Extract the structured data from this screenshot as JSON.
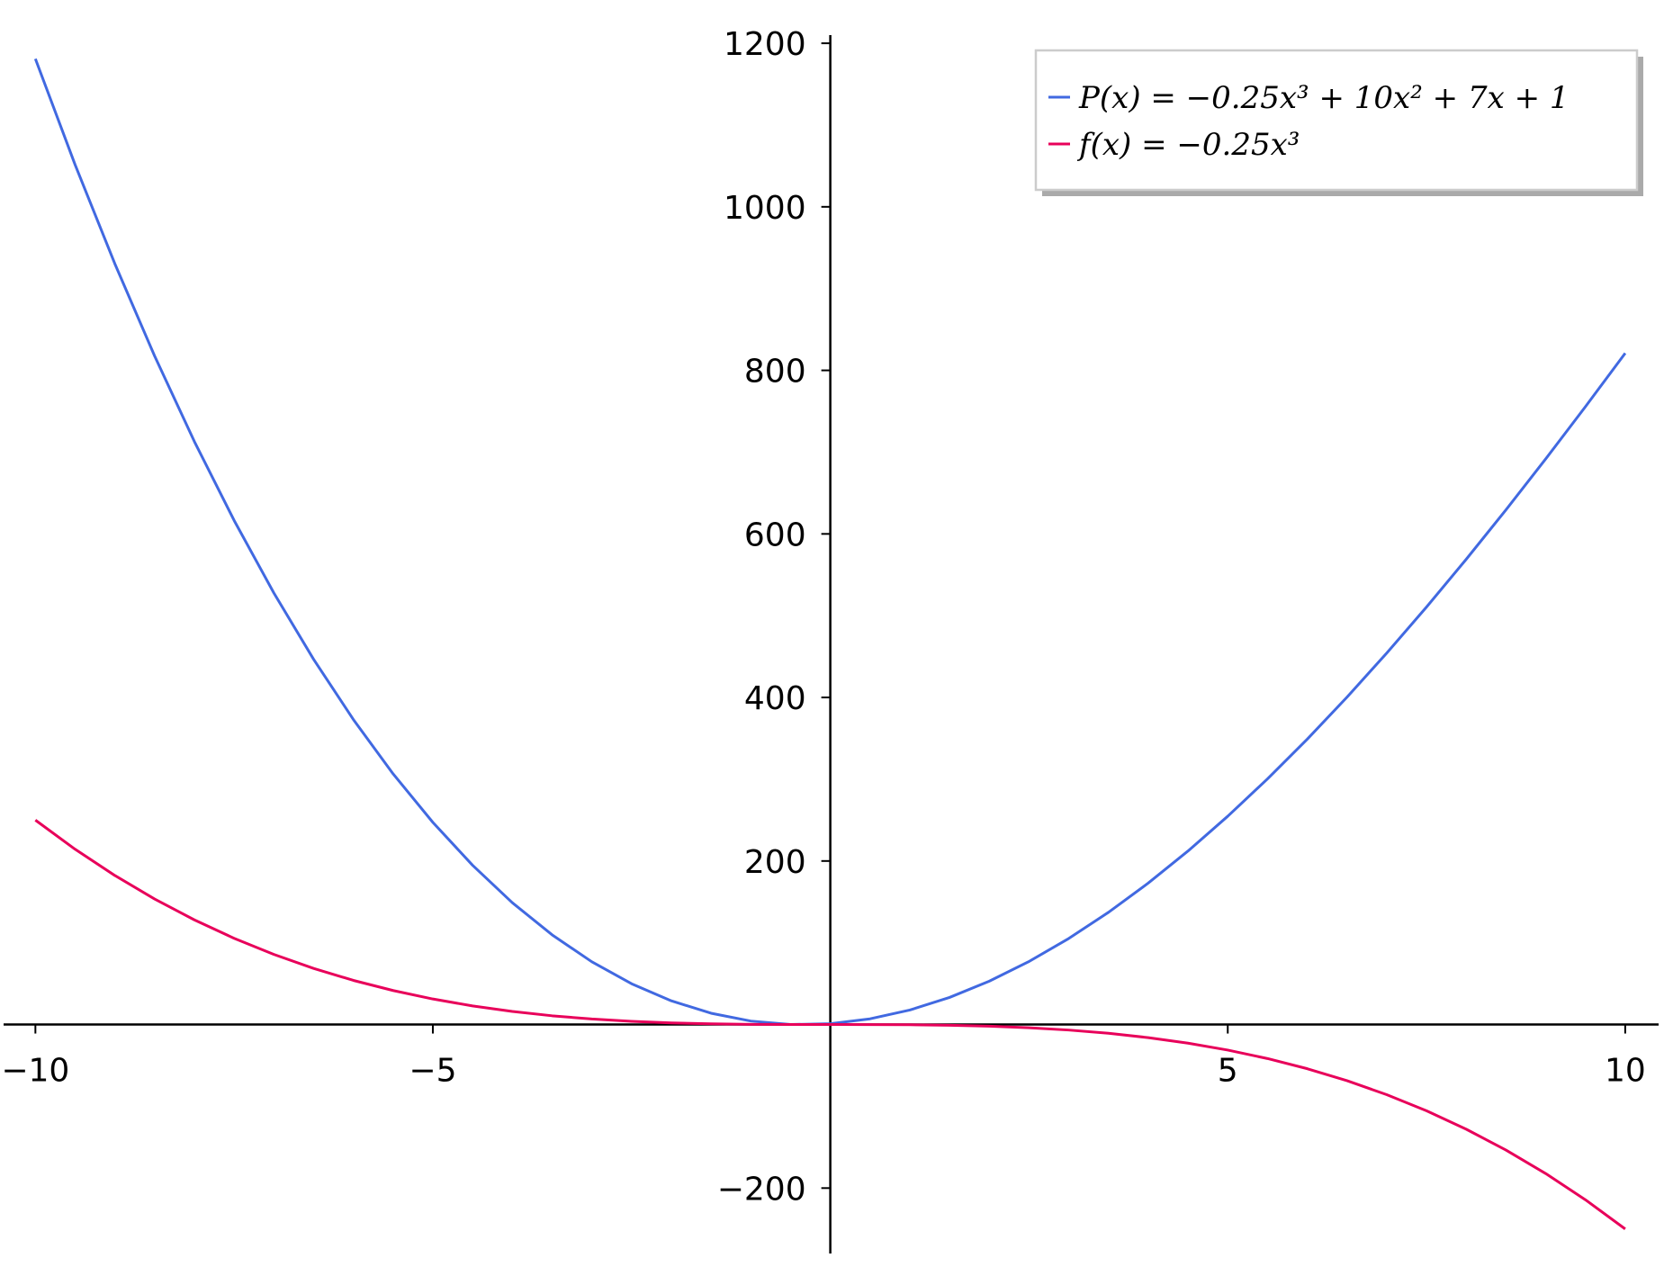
{
  "chart_data": {
    "type": "line",
    "x": [
      -10,
      -9.5,
      -9,
      -8.5,
      -8,
      -7.5,
      -7,
      -6.5,
      -6,
      -5.5,
      -5,
      -4.5,
      -4,
      -3.5,
      -3,
      -2.5,
      -2,
      -1.5,
      -1,
      -0.5,
      0,
      0.5,
      1,
      1.5,
      2,
      2.5,
      3,
      3.5,
      4,
      4.5,
      5,
      5.5,
      6,
      6.5,
      7,
      7.5,
      8,
      8.5,
      9,
      9.5,
      10
    ],
    "series": [
      {
        "name": "P(x) = −0.25x³ + 10x² + 7x + 1",
        "color": "#4169e1",
        "values": [
          1181,
          1051.34375,
          930.25,
          817.53125,
          713,
          616.46875,
          527.75,
          446.65625,
          373,
          306.59375,
          247.25,
          194.78125,
          149,
          109.71875,
          76.75,
          49.90625,
          29,
          13.84375,
          4.25,
          0.03125,
          1,
          6.96875,
          17.75,
          33.15625,
          53,
          77.09375,
          105.25,
          137.28125,
          173,
          212.21875,
          254.75,
          300.40625,
          349,
          400.34375,
          454.25,
          510.53125,
          569,
          629.46875,
          691.75,
          755.65625,
          821
        ]
      },
      {
        "name": "f(x) = −0.25x³",
        "color": "#e8005a",
        "values": [
          250,
          214.34375,
          182.25,
          153.53125,
          128,
          105.46875,
          85.75,
          68.65625,
          54,
          41.59375,
          31.25,
          22.78125,
          16,
          10.71875,
          6.75,
          3.90625,
          2,
          0.84375,
          0.25,
          0.03125,
          0,
          -0.03125,
          -0.25,
          -0.84375,
          -2,
          -3.90625,
          -6.75,
          -10.71875,
          -16,
          -22.78125,
          -31.25,
          -41.59375,
          -54,
          -68.65625,
          -85.75,
          -105.46875,
          -128,
          -153.53125,
          -182.25,
          -214.34375,
          -250
        ]
      }
    ],
    "xlim": [
      -10.4,
      10.42
    ],
    "ylim": [
      -280,
      1210
    ],
    "xticks": [
      {
        "value": -10,
        "label": "−10"
      },
      {
        "value": -5,
        "label": "−5"
      },
      5,
      10
    ],
    "yticks": [
      {
        "value": -200,
        "label": "−200"
      },
      200,
      400,
      600,
      800,
      1000,
      1200
    ],
    "legend": "upper right",
    "grid": false
  }
}
